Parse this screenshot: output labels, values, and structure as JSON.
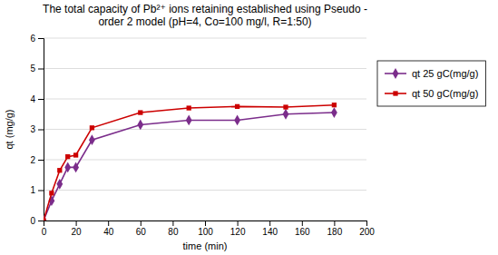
{
  "chart_data": {
    "type": "line",
    "title": "The total capacity of  Pb²⁺ ions retaining established using Pseudo -\norder 2 model (pH=4, Co=100 mg/l, R=1:50)",
    "x_label": "time (min)",
    "y_label": "qt (mg/g)",
    "x": [
      0,
      5,
      10,
      15,
      20,
      30,
      60,
      90,
      120,
      150,
      180
    ],
    "series": [
      {
        "name": "qt 25 gC(mg/g)",
        "color": "#7B2D8B",
        "marker": "diamond",
        "values": [
          0,
          0.65,
          1.2,
          1.75,
          1.75,
          2.65,
          3.15,
          3.3,
          3.3,
          3.5,
          3.55
        ]
      },
      {
        "name": "qt 50 gC(mg/g)",
        "color": "#CC0000",
        "marker": "square",
        "values": [
          0,
          0.9,
          1.65,
          2.1,
          2.15,
          3.05,
          3.55,
          3.7,
          3.75,
          3.73,
          3.8
        ]
      }
    ],
    "xlim": [
      0,
      200
    ],
    "ylim": [
      0,
      6
    ],
    "xticks": [
      0,
      20,
      40,
      60,
      80,
      100,
      120,
      140,
      160,
      180,
      200
    ],
    "yticks": [
      0,
      1,
      2,
      3,
      4,
      5,
      6
    ],
    "grid": "y",
    "legend": "right"
  }
}
